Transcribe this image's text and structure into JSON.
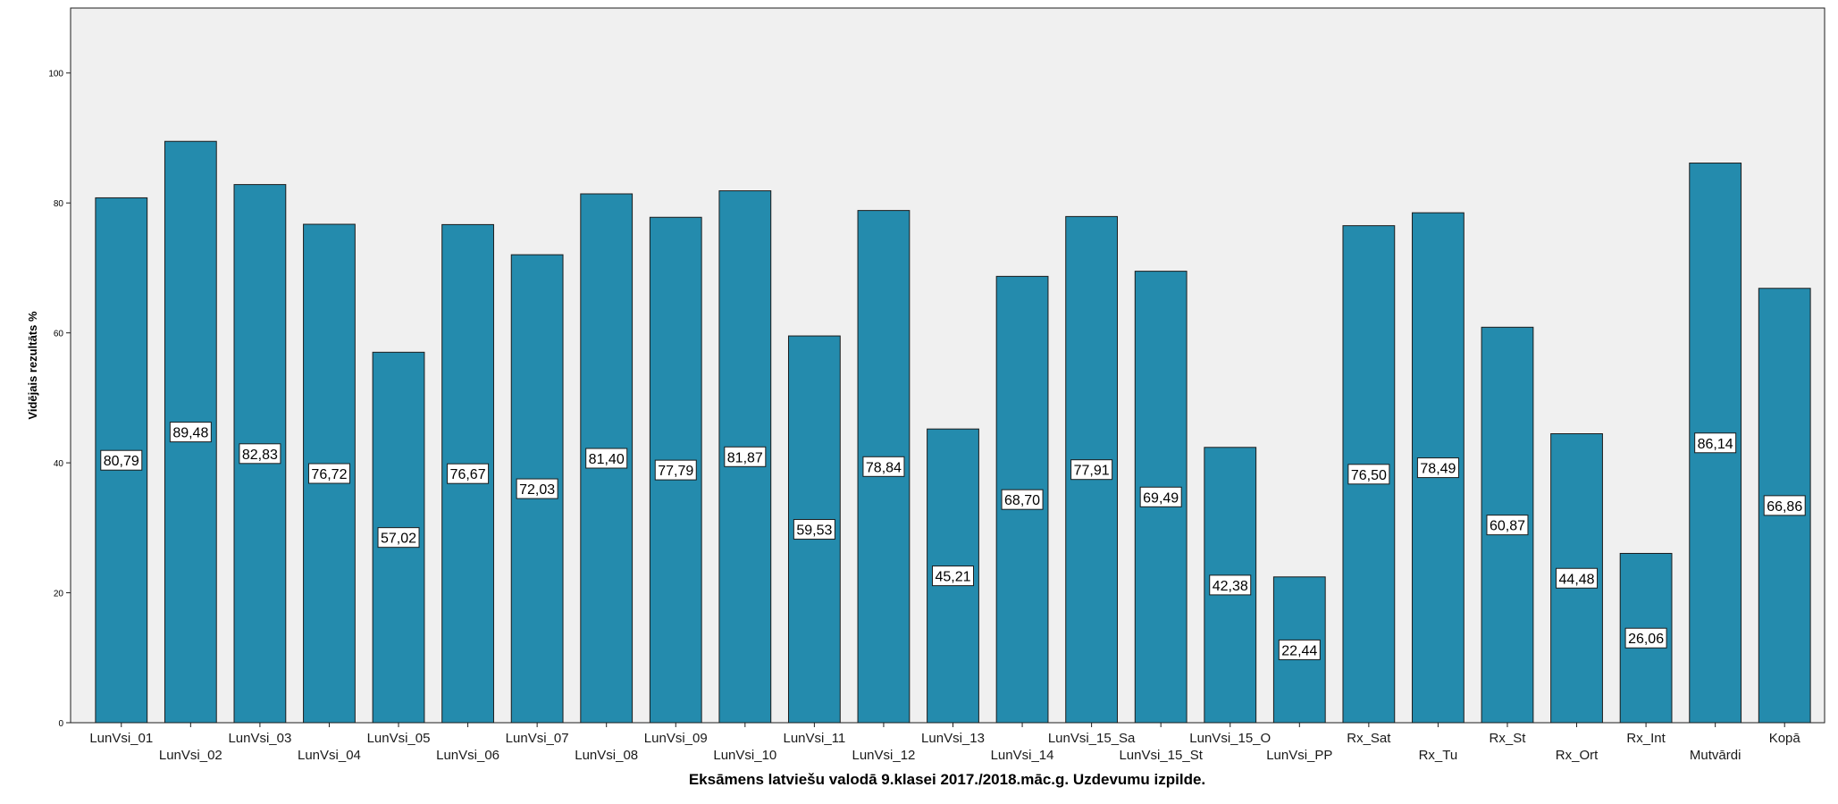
{
  "chart_data": {
    "type": "bar",
    "title": "",
    "xlabel": "Eksāmens latviešu valodā 9.klasei 2017./2018.māc.g. Uzdevumu izpilde.",
    "ylabel": "Vidējais rezultāts %",
    "ylim": [
      0,
      110
    ],
    "yticks": [
      "0",
      "20",
      "40",
      "60",
      "80",
      "100"
    ],
    "grid": false,
    "legend": "none",
    "colors": {
      "bar": "#248bad",
      "bar_stroke": "#1c1c1c",
      "plot_bg": "#f0f0f0"
    },
    "categories": [
      "LunVsi_01",
      "LunVsi_02",
      "LunVsi_03",
      "LunVsi_04",
      "LunVsi_05",
      "LunVsi_06",
      "LunVsi_07",
      "LunVsi_08",
      "LunVsi_09",
      "LunVsi_10",
      "LunVsi_11",
      "LunVsi_12",
      "LunVsi_13",
      "LunVsi_14",
      "LunVsi_15_Sa",
      "LunVsi_15_St",
      "LunVsi_15_O",
      "LunVsi_PP",
      "Rx_Sat",
      "Rx_Tu",
      "Rx_St",
      "Rx_Ort",
      "Rx_Int",
      "Mutvārdi",
      "Kopā"
    ],
    "values": [
      80.79,
      89.48,
      82.83,
      76.72,
      57.02,
      76.67,
      72.03,
      81.4,
      77.79,
      81.87,
      59.53,
      78.84,
      45.21,
      68.7,
      77.91,
      69.49,
      42.38,
      22.44,
      76.5,
      78.49,
      60.87,
      44.48,
      26.06,
      86.14,
      66.86
    ],
    "data_labels": [
      "80,79",
      "89,48",
      "82,83",
      "76,72",
      "57,02",
      "76,67",
      "72,03",
      "81,40",
      "77,79",
      "81,87",
      "59,53",
      "78,84",
      "45,21",
      "68,70",
      "77,91",
      "69,49",
      "42,38",
      "22,44",
      "76,50",
      "78,49",
      "60,87",
      "44,48",
      "26,06",
      "86,14",
      "66,86"
    ]
  }
}
